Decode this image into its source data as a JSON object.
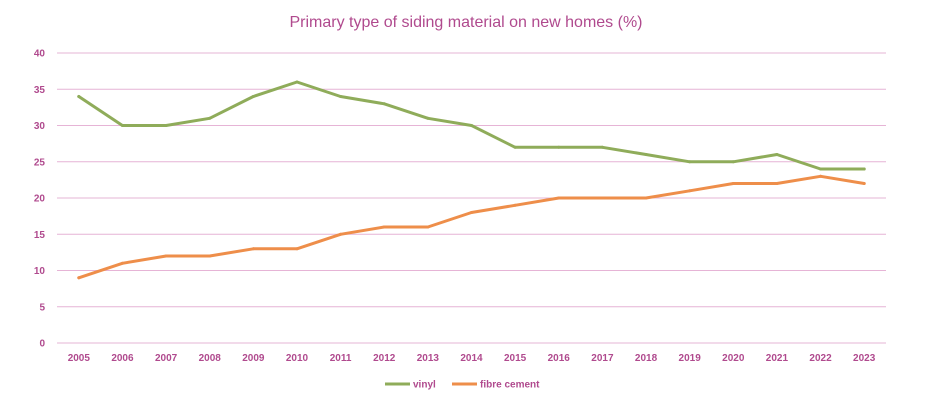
{
  "chart_data": {
    "type": "line",
    "title": "Primary type of siding material on new homes (%)",
    "xlabel": "",
    "ylabel": "",
    "categories": [
      "2005",
      "2006",
      "2007",
      "2008",
      "2009",
      "2010",
      "2011",
      "2012",
      "2013",
      "2014",
      "2015",
      "2016",
      "2017",
      "2018",
      "2019",
      "2020",
      "2021",
      "2022",
      "2023"
    ],
    "yticks": [
      "0",
      "5",
      "10",
      "15",
      "20",
      "25",
      "30",
      "35",
      "40"
    ],
    "ylim": [
      0,
      40
    ],
    "grid": true,
    "legend_position": "bottom",
    "series": [
      {
        "name": "vinyl",
        "color": "#8fac5a",
        "values": [
          34,
          30,
          30,
          31,
          34,
          36,
          34,
          33,
          31,
          30,
          27,
          27,
          27,
          26,
          25,
          25,
          26,
          24,
          24
        ]
      },
      {
        "name": "fibre cement",
        "color": "#ee8e4a",
        "values": [
          9,
          11,
          12,
          12,
          13,
          13,
          15,
          16,
          16,
          18,
          19,
          20,
          20,
          20,
          21,
          22,
          22,
          23,
          22
        ]
      }
    ],
    "colors": {
      "text": "#b04a8e",
      "grid": "#e6b4d6"
    }
  }
}
